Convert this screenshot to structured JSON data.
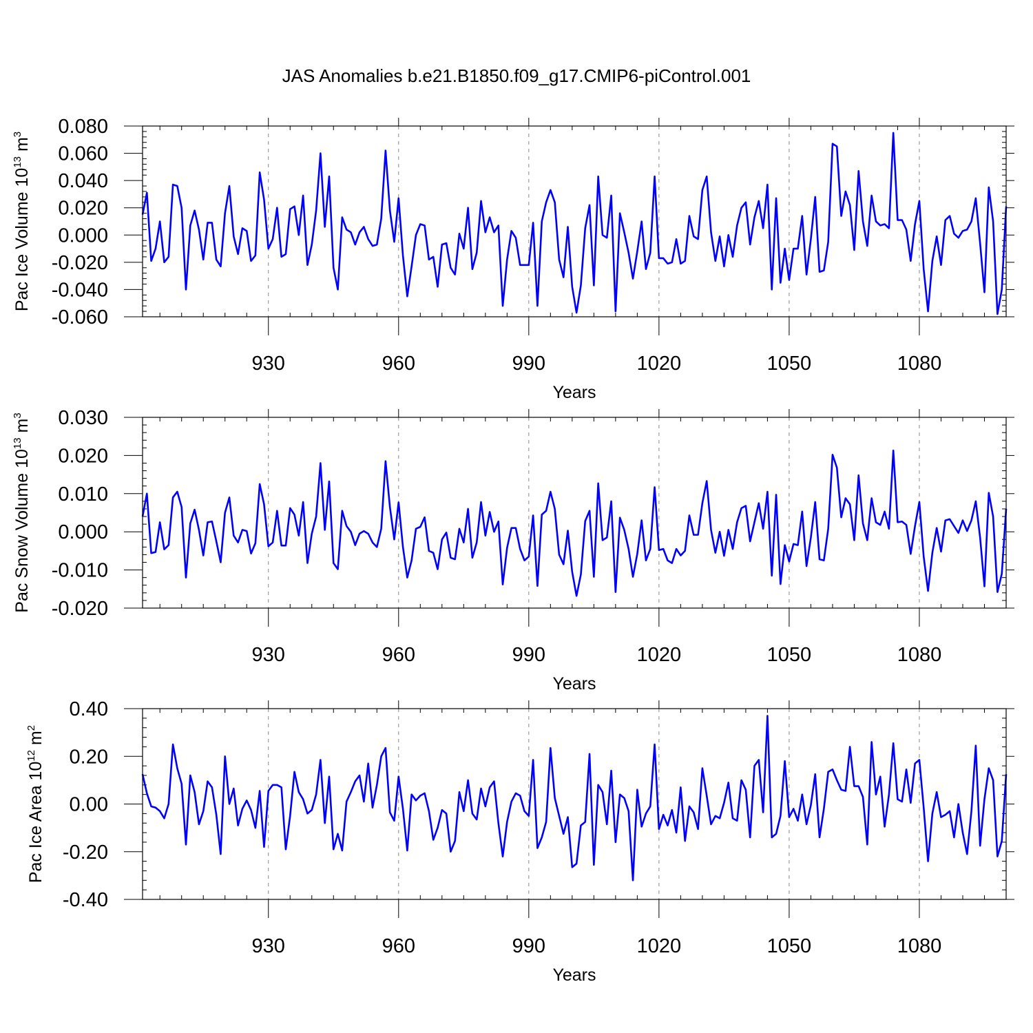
{
  "title": "JAS Anomalies b.e21.B1850.f09_g17.CMIP6-piControl.001",
  "chart_data": [
    {
      "type": "line",
      "ylabel_main": "Pac Ice Volume 10",
      "ylabel_exp": "13",
      "ylabel_unit": " m",
      "ylabel_unit_exp": "3",
      "xlabel": "Years",
      "xlim": [
        901,
        1100
      ],
      "ylim": [
        -0.06,
        0.08
      ],
      "yticks": [
        -0.06,
        -0.04,
        -0.02,
        0.0,
        0.02,
        0.04,
        0.06,
        0.08
      ],
      "ytick_labels": [
        "-0.060",
        "-0.040",
        "-0.020",
        "0.000",
        "0.020",
        "0.040",
        "0.060",
        "0.080"
      ],
      "xticks": [
        930,
        960,
        990,
        1020,
        1050,
        1080
      ],
      "xtick_labels": [
        "930",
        "960",
        "990",
        "1020",
        "1050",
        "1080"
      ],
      "grid": "dashed vertical at x ticks",
      "series": [
        {
          "name": "Pac Ice Volume",
          "color": "#0000ff",
          "x_start": 901,
          "values": [
            0.015,
            0.031,
            -0.019,
            -0.01,
            0.01,
            -0.02,
            -0.016,
            0.037,
            0.036,
            0.02,
            -0.04,
            0.007,
            0.018,
            0.004,
            -0.018,
            0.009,
            0.009,
            -0.018,
            -0.023,
            0.016,
            0.036,
            -0.001,
            -0.014,
            0.005,
            0.003,
            -0.019,
            -0.015,
            0.046,
            0.026,
            -0.01,
            -0.003,
            0.02,
            -0.016,
            -0.014,
            0.019,
            0.021,
            0.0,
            0.029,
            -0.022,
            -0.007,
            0.018,
            0.06,
            0.006,
            0.043,
            -0.024,
            -0.04,
            0.013,
            0.004,
            0.002,
            -0.007,
            0.002,
            0.006,
            -0.003,
            -0.008,
            -0.007,
            0.012,
            0.062,
            0.018,
            -0.005,
            0.027,
            -0.015,
            -0.045,
            -0.023,
            0.0,
            0.008,
            0.007,
            -0.018,
            -0.016,
            -0.038,
            -0.007,
            -0.006,
            -0.024,
            -0.029,
            0.001,
            -0.01,
            0.02,
            -0.025,
            -0.013,
            0.025,
            0.002,
            0.013,
            0.002,
            0.007,
            -0.052,
            -0.018,
            0.003,
            -0.002,
            -0.022,
            -0.022,
            -0.022,
            0.009,
            -0.052,
            0.01,
            0.024,
            0.033,
            0.024,
            -0.018,
            -0.031,
            0.006,
            -0.038,
            -0.057,
            -0.037,
            0.005,
            0.022,
            -0.037,
            0.043,
            0.0,
            -0.002,
            0.029,
            -0.056,
            0.016,
            0.002,
            -0.013,
            -0.032,
            -0.012,
            0.01,
            -0.025,
            -0.013,
            0.043,
            -0.017,
            -0.017,
            -0.021,
            -0.02,
            -0.003,
            -0.021,
            -0.019,
            0.014,
            -0.001,
            -0.003,
            0.033,
            0.043,
            0.002,
            -0.019,
            -0.001,
            -0.023,
            0.0,
            -0.016,
            0.007,
            0.02,
            0.024,
            -0.007,
            0.013,
            0.025,
            0.005,
            0.037,
            -0.04,
            0.027,
            -0.035,
            -0.01,
            -0.033,
            -0.01,
            -0.01,
            0.014,
            -0.029,
            -0.003,
            0.028,
            -0.027,
            -0.026,
            -0.005,
            0.067,
            0.065,
            0.014,
            0.032,
            0.022,
            -0.011,
            0.047,
            0.01,
            -0.008,
            0.029,
            0.01,
            0.007,
            0.008,
            0.005,
            0.075,
            0.011,
            0.011,
            0.004,
            -0.019,
            0.008,
            0.025,
            -0.025,
            -0.056,
            -0.019,
            -0.001,
            -0.022,
            0.011,
            0.014,
            0.001,
            -0.002,
            0.003,
            0.004,
            0.01,
            0.027,
            -0.006,
            -0.042,
            0.035,
            0.01,
            -0.058,
            -0.04,
            0.021
          ]
        }
      ]
    },
    {
      "type": "line",
      "ylabel_main": "Pac Snow Volume 10",
      "ylabel_exp": "13",
      "ylabel_unit": " m",
      "ylabel_unit_exp": "3",
      "xlabel": "Years",
      "xlim": [
        901,
        1100
      ],
      "ylim": [
        -0.02,
        0.03
      ],
      "yticks": [
        -0.02,
        -0.01,
        0.0,
        0.01,
        0.02,
        0.03
      ],
      "ytick_labels": [
        "-0.020",
        "-0.010",
        "0.000",
        "0.010",
        "0.020",
        "0.030"
      ],
      "xticks": [
        930,
        960,
        990,
        1020,
        1050,
        1080
      ],
      "xtick_labels": [
        "930",
        "960",
        "990",
        "1020",
        "1050",
        "1080"
      ],
      "grid": "dashed vertical at x ticks",
      "series": [
        {
          "name": "Pac Snow Volume",
          "color": "#0000ff",
          "x_start": 901,
          "values": [
            0.004,
            0.01,
            -0.0056,
            -0.0053,
            0.0025,
            -0.0046,
            -0.0035,
            0.009,
            0.0105,
            0.0065,
            -0.012,
            0.0022,
            0.0058,
            0.0005,
            -0.0062,
            0.0025,
            0.0027,
            -0.0025,
            -0.008,
            0.005,
            0.009,
            -0.001,
            -0.0028,
            0.0005,
            0.0002,
            -0.0057,
            -0.003,
            0.0125,
            0.0072,
            -0.0038,
            -0.0028,
            0.0055,
            -0.0036,
            -0.0036,
            0.0062,
            0.0045,
            -0.001,
            0.0078,
            -0.0082,
            -0.0005,
            0.004,
            0.018,
            0.0005,
            0.0132,
            -0.0082,
            -0.0098,
            0.0055,
            0.0015,
            0.0,
            -0.0035,
            -0.0005,
            0.0002,
            -0.0005,
            -0.0028,
            -0.004,
            0.0008,
            0.0185,
            0.0065,
            -0.002,
            0.0077,
            -0.004,
            -0.012,
            -0.0075,
            0.0008,
            0.0013,
            0.0038,
            -0.005,
            -0.0055,
            -0.0098,
            -0.002,
            -0.0002,
            -0.0068,
            -0.0072,
            0.0008,
            -0.0028,
            0.006,
            -0.0068,
            -0.0028,
            0.0078,
            -0.001,
            0.0052,
            0.0,
            0.0027,
            -0.0138,
            -0.0042,
            0.001,
            0.001,
            -0.0045,
            -0.0075,
            -0.0065,
            0.0043,
            -0.0142,
            0.0045,
            0.0055,
            0.0105,
            0.006,
            -0.006,
            -0.0085,
            0.0003,
            -0.0105,
            -0.0168,
            -0.0112,
            0.0028,
            0.0055,
            -0.0118,
            0.0127,
            -0.0022,
            -0.0015,
            0.008,
            -0.0158,
            0.0037,
            0.0005,
            -0.0045,
            -0.0118,
            -0.0058,
            0.003,
            -0.0075,
            -0.0045,
            0.0117,
            -0.0048,
            -0.0045,
            -0.0075,
            -0.0082,
            -0.0045,
            -0.0062,
            -0.005,
            0.0043,
            -0.0008,
            -0.0008,
            0.0075,
            0.0133,
            0.0005,
            -0.0055,
            0.0,
            -0.0063,
            0.0005,
            -0.0045,
            0.0025,
            0.0062,
            0.0068,
            -0.0025,
            0.0025,
            0.0075,
            0.0008,
            0.0105,
            -0.0115,
            0.0097,
            -0.0137,
            -0.0035,
            -0.0078,
            -0.0032,
            -0.0035,
            0.0053,
            -0.009,
            -0.0015,
            0.0078,
            -0.0072,
            -0.0075,
            0.0008,
            0.0202,
            0.0168,
            0.0038,
            0.0088,
            0.0072,
            -0.0022,
            0.0148,
            0.0022,
            -0.0022,
            0.0088,
            0.0025,
            0.0018,
            0.0053,
            0.0008,
            0.0213,
            0.0025,
            0.0027,
            0.0018,
            -0.0058,
            0.0015,
            0.0078,
            -0.0065,
            -0.0155,
            -0.0055,
            0.001,
            -0.0052,
            0.003,
            0.0033,
            0.0015,
            -0.0003,
            0.003,
            0.0002,
            0.003,
            0.008,
            -0.0015,
            -0.0143,
            0.0102,
            0.004,
            -0.0158,
            -0.011,
            0.006
          ]
        }
      ]
    },
    {
      "type": "line",
      "ylabel_main": "Pac Ice Area 10",
      "ylabel_exp": "12",
      "ylabel_unit": " m",
      "ylabel_unit_exp": "2",
      "xlabel": "Years",
      "xlim": [
        901,
        1100
      ],
      "ylim": [
        -0.4,
        0.4
      ],
      "yticks": [
        -0.4,
        -0.2,
        0.0,
        0.2,
        0.4
      ],
      "ytick_labels": [
        "-0.40",
        "-0.20",
        "0.00",
        "0.20",
        "0.40"
      ],
      "xticks": [
        930,
        960,
        990,
        1020,
        1050,
        1080
      ],
      "xtick_labels": [
        "930",
        "960",
        "990",
        "1020",
        "1050",
        "1080"
      ],
      "grid": "dashed vertical at x ticks",
      "series": [
        {
          "name": "Pac Ice Area",
          "color": "#0000ff",
          "x_start": 901,
          "values": [
            0.125,
            0.045,
            -0.01,
            -0.015,
            -0.03,
            -0.06,
            0.0,
            0.25,
            0.15,
            0.085,
            -0.17,
            0.12,
            0.05,
            -0.085,
            -0.03,
            0.095,
            0.07,
            -0.045,
            -0.21,
            0.2,
            0.0,
            0.065,
            -0.09,
            -0.02,
            0.015,
            -0.025,
            -0.1,
            0.055,
            -0.18,
            0.055,
            0.08,
            0.08,
            0.07,
            -0.19,
            -0.05,
            0.135,
            0.05,
            0.02,
            -0.04,
            -0.025,
            0.04,
            0.185,
            -0.08,
            0.115,
            -0.19,
            -0.125,
            -0.195,
            0.01,
            0.05,
            0.095,
            0.12,
            0.01,
            0.17,
            -0.015,
            0.08,
            0.2,
            0.235,
            -0.035,
            -0.07,
            0.115,
            -0.02,
            -0.195,
            0.04,
            0.015,
            0.035,
            0.045,
            -0.03,
            -0.15,
            -0.1,
            -0.025,
            -0.04,
            -0.2,
            -0.155,
            0.05,
            -0.03,
            0.1,
            -0.04,
            -0.065,
            0.065,
            -0.01,
            0.07,
            0.095,
            -0.08,
            -0.22,
            -0.075,
            0.01,
            0.045,
            0.035,
            -0.03,
            -0.05,
            0.185,
            -0.185,
            -0.14,
            -0.075,
            0.235,
            0.025,
            -0.05,
            -0.125,
            -0.055,
            -0.265,
            -0.25,
            -0.09,
            -0.075,
            0.21,
            -0.255,
            0.08,
            0.05,
            -0.085,
            0.14,
            -0.16,
            0.04,
            0.025,
            -0.03,
            -0.32,
            0.06,
            -0.095,
            -0.04,
            -0.01,
            0.25,
            -0.105,
            -0.045,
            -0.09,
            -0.025,
            -0.12,
            0.07,
            -0.155,
            -0.01,
            -0.035,
            -0.105,
            0.15,
            0.035,
            -0.085,
            -0.05,
            -0.06,
            0.005,
            0.09,
            -0.06,
            -0.07,
            0.1,
            0.06,
            -0.14,
            0.16,
            0.185,
            -0.035,
            0.37,
            -0.14,
            -0.125,
            -0.05,
            0.18,
            -0.055,
            -0.02,
            -0.07,
            0.04,
            -0.085,
            -0.005,
            0.125,
            -0.14,
            -0.02,
            0.135,
            0.145,
            0.1,
            0.06,
            0.055,
            0.24,
            0.075,
            0.075,
            0.03,
            -0.17,
            0.26,
            0.04,
            0.115,
            -0.095,
            0.04,
            0.255,
            0.02,
            0.01,
            0.145,
            0.005,
            0.17,
            0.185,
            -0.015,
            -0.24,
            -0.04,
            0.05,
            -0.055,
            -0.045,
            -0.03,
            -0.14,
            0.0,
            -0.12,
            -0.21,
            -0.03,
            0.245,
            -0.175,
            0.02,
            0.15,
            0.1,
            -0.22,
            -0.155,
            0.125
          ]
        }
      ]
    }
  ]
}
